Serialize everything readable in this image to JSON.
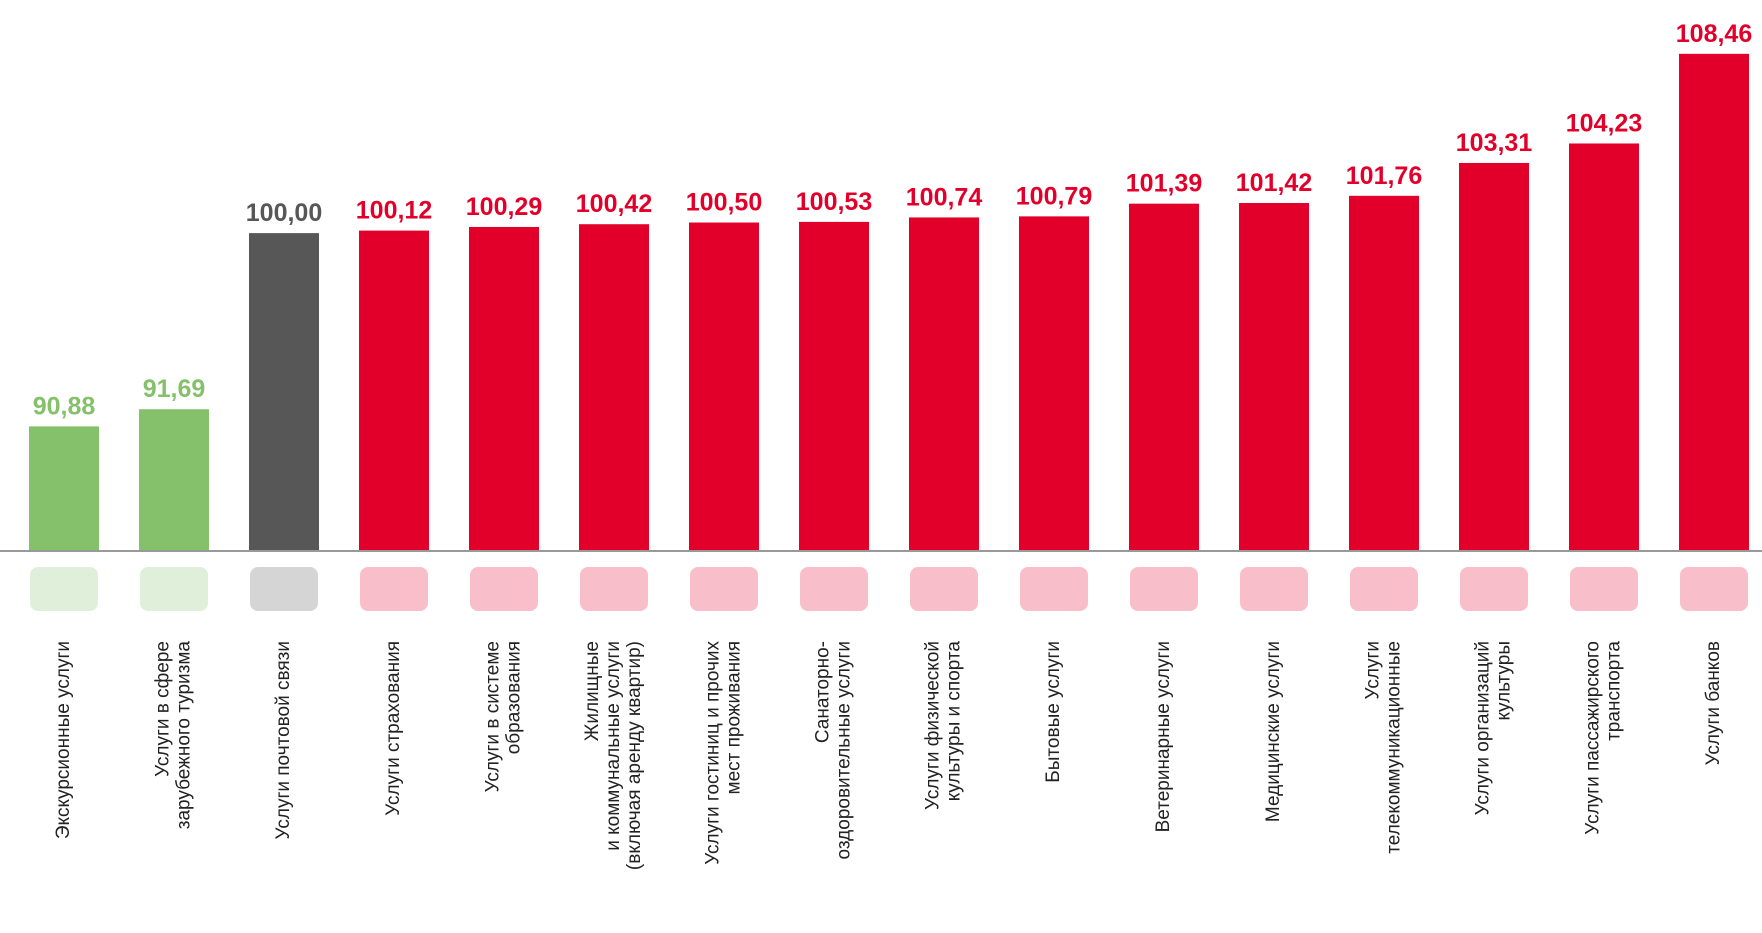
{
  "chart_data": {
    "type": "bar",
    "categories": [
      [
        "Экскурсионные услуги"
      ],
      [
        "Услуги в сфере",
        "зарубежного туризма"
      ],
      [
        "Услуги почтовой связи"
      ],
      [
        "Услуги страхования"
      ],
      [
        "Услуги в системе",
        "образования"
      ],
      [
        "Жилищные",
        "и коммунальные услуги",
        "(включая аренду квартир)"
      ],
      [
        "Услуги гостиниц и прочих",
        "мест проживания"
      ],
      [
        "Санаторно-",
        "оздоровительные услуги"
      ],
      [
        "Услуги физической",
        "культуры и спорта"
      ],
      [
        "Бытовые услуги"
      ],
      [
        "Ветеринарные услуги"
      ],
      [
        "Медицинские услуги"
      ],
      [
        "Услуги",
        "телекоммуникационные"
      ],
      [
        "Услуги организаций",
        "культуры"
      ],
      [
        "Услуги пассажирского",
        "транспорта"
      ],
      [
        "Услуги банков"
      ]
    ],
    "values": [
      90.88,
      91.69,
      100.0,
      100.12,
      100.29,
      100.42,
      100.5,
      100.53,
      100.74,
      100.79,
      101.39,
      101.42,
      101.76,
      103.31,
      104.23,
      108.46
    ],
    "value_labels": [
      "90,88",
      "91,69",
      "100,00",
      "100,12",
      "100,29",
      "100,42",
      "100,50",
      "100,53",
      "100,74",
      "100,79",
      "101,39",
      "101,42",
      "101,76",
      "103,31",
      "104,23",
      "108,46"
    ],
    "colors": [
      "#85c06a",
      "#85c06a",
      "#575757",
      "#e2002b",
      "#e2002b",
      "#e2002b",
      "#e2002b",
      "#e2002b",
      "#e2002b",
      "#e2002b",
      "#e2002b",
      "#e2002b",
      "#e2002b",
      "#e2002b",
      "#e2002b",
      "#e2002b"
    ],
    "ylim": [
      85,
      111
    ]
  }
}
